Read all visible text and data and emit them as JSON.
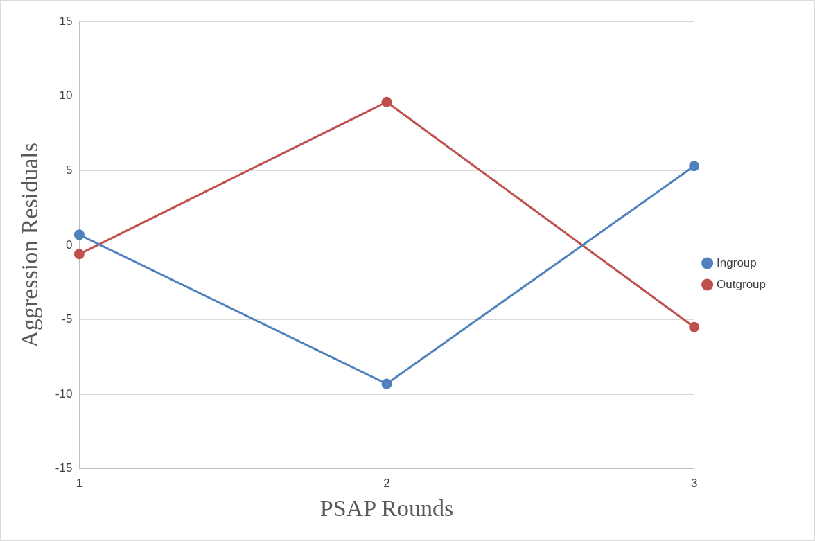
{
  "chart_data": {
    "type": "line",
    "xlabel": "PSAP Rounds",
    "ylabel": "Aggression Residuals",
    "categories": [
      "1",
      "2",
      "3"
    ],
    "series": [
      {
        "name": "Ingroup",
        "color": "#4f81bd",
        "values": [
          0.7,
          -9.3,
          5.3
        ]
      },
      {
        "name": "Outgroup",
        "color": "#c0504d",
        "values": [
          -0.6,
          9.6,
          -5.5
        ]
      }
    ],
    "ylim": [
      -15,
      15
    ],
    "yticks": [
      -15,
      -10,
      -5,
      0,
      5,
      10,
      15
    ],
    "grid": "y",
    "legend": "right",
    "marker": "circle",
    "line_style": "solid"
  }
}
